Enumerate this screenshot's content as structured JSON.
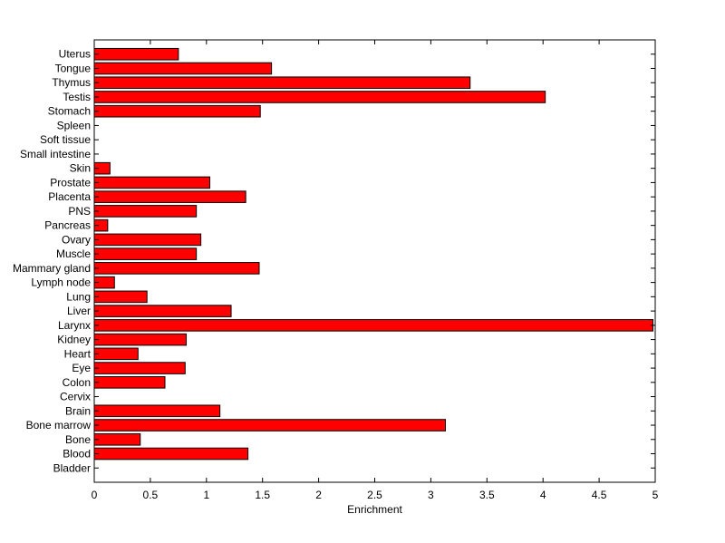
{
  "chart_data": {
    "type": "bar",
    "orientation": "horizontal",
    "categories": [
      "Bladder",
      "Blood",
      "Bone",
      "Bone marrow",
      "Brain",
      "Cervix",
      "Colon",
      "Eye",
      "Heart",
      "Kidney",
      "Larynx",
      "Liver",
      "Lung",
      "Lymph node",
      "Mammary gland",
      "Muscle",
      "Ovary",
      "Pancreas",
      "PNS",
      "Placenta",
      "Prostate",
      "Skin",
      "Small intestine",
      "Soft tissue",
      "Spleen",
      "Stomach",
      "Testis",
      "Thymus",
      "Tongue",
      "Uterus"
    ],
    "values": [
      0,
      1.37,
      0.41,
      3.13,
      1.12,
      0,
      0.63,
      0.81,
      0.39,
      0.82,
      4.98,
      1.22,
      0.47,
      0.18,
      1.47,
      0.91,
      0.95,
      0.12,
      0.91,
      1.35,
      1.03,
      0.14,
      0,
      0,
      0,
      1.48,
      4.02,
      3.35,
      1.58,
      0.75
    ],
    "xlabel": "Enrichment",
    "ylabel": "",
    "title": "",
    "xlim": [
      0,
      5
    ],
    "xticks": [
      "0",
      "0.5",
      "1",
      "1.5",
      "2",
      "2.5",
      "3",
      "3.5",
      "4",
      "4.5",
      "5"
    ],
    "bar_color": "#ff0000",
    "grid": false
  }
}
